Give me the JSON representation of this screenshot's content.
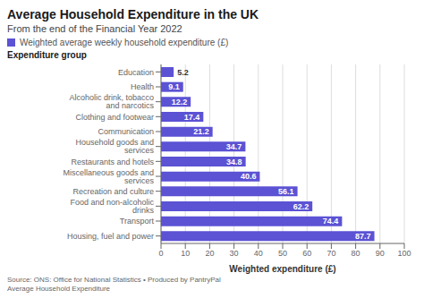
{
  "chart_data": {
    "type": "bar",
    "orientation": "horizontal",
    "title": "Average Household Expenditure in the UK",
    "subtitle": "From the end of the Financial Year 2022",
    "xlabel": "Weighted expenditure (£)",
    "ylabel": "Expenditure group",
    "categories": [
      "Housing, fuel and power",
      "Transport",
      "Food and non-alcoholic drinks",
      "Recreation and culture",
      "Miscellaneous goods and services",
      "Restaurants and hotels",
      "Household goods and services",
      "Communication",
      "Clothing and footwear",
      "Alcoholic drink, tobacco and narcotics",
      "Health",
      "Education"
    ],
    "series": [
      {
        "name": "Weighted average weekly household expenditure (£)",
        "color": "#5b52d4",
        "values": [
          87.7,
          74.4,
          62.2,
          56.1,
          40.6,
          34.8,
          34.7,
          21.2,
          17.4,
          12.2,
          9.1,
          5.2
        ]
      }
    ],
    "xlim": [
      0,
      100
    ],
    "xticks": [
      0,
      10,
      20,
      30,
      40,
      50,
      60,
      70,
      80,
      90,
      100
    ],
    "grid": true,
    "data_labels": true,
    "legend": "top",
    "annotations": [
      "Source: ONS: Office for National Statistics • Produced by PantryPal\nAverage Household Expenditure"
    ]
  }
}
